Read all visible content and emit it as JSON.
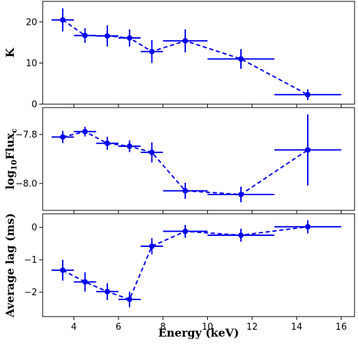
{
  "chart_data": [
    {
      "type": "line",
      "ylabel": "K",
      "ylim": [
        0,
        25
      ],
      "xlim": [
        2.6,
        16.6
      ],
      "yticks": [
        0,
        10,
        20
      ],
      "ytick_labels": [
        "0",
        "10",
        "20"
      ],
      "series": [
        {
          "color": "#0000ee",
          "points": [
            {
              "x": 3.5,
              "xerr": 0.5,
              "y": 20.5,
              "yerr": 2.8
            },
            {
              "x": 4.5,
              "xerr": 0.5,
              "y": 16.7,
              "yerr": 1.8
            },
            {
              "x": 5.5,
              "xerr": 0.5,
              "y": 16.6,
              "yerr": 2.6
            },
            {
              "x": 6.5,
              "xerr": 0.5,
              "y": 16.1,
              "yerr": 2.1
            },
            {
              "x": 7.5,
              "xerr": 0.5,
              "y": 12.8,
              "yerr": 2.8
            },
            {
              "x": 9.0,
              "xerr": 1.0,
              "y": 15.4,
              "yerr": 2.8
            },
            {
              "x": 11.5,
              "xerr": 1.5,
              "y": 11.0,
              "yerr": 2.4
            },
            {
              "x": 14.5,
              "xerr": 1.5,
              "y": 2.3,
              "yerr": 1.3
            }
          ]
        }
      ]
    },
    {
      "type": "line",
      "ylabel": "log₁₀Flux꜀",
      "ylabel_main": "log",
      "ylabel_sub1": "10",
      "ylabel_mid": "Flux",
      "ylabel_sub2": "c",
      "ylim": [
        -8.11,
        -7.69
      ],
      "xlim": [
        2.6,
        16.6
      ],
      "yticks": [
        -8.0,
        -7.8
      ],
      "ytick_labels": [
        "−8.0",
        "−7.8"
      ],
      "series": [
        {
          "color": "#0000ee",
          "points": [
            {
              "x": 3.5,
              "xerr": 0.5,
              "y": -7.81,
              "yerr": 0.025
            },
            {
              "x": 4.5,
              "xerr": 0.5,
              "y": -7.788,
              "yerr": 0.02
            },
            {
              "x": 5.5,
              "xerr": 0.5,
              "y": -7.836,
              "yerr": 0.027
            },
            {
              "x": 6.5,
              "xerr": 0.5,
              "y": -7.848,
              "yerr": 0.024
            },
            {
              "x": 7.5,
              "xerr": 0.5,
              "y": -7.873,
              "yerr": 0.041
            },
            {
              "x": 9.0,
              "xerr": 1.0,
              "y": -8.03,
              "yerr": 0.033
            },
            {
              "x": 11.5,
              "xerr": 1.5,
              "y": -8.045,
              "yerr": 0.032
            },
            {
              "x": 14.5,
              "xerr": 1.5,
              "y": -7.863,
              "yerr": 0.145
            }
          ]
        }
      ]
    },
    {
      "type": "line",
      "ylabel": "Average lag (ms)",
      "xlabel": "Energy (keV)",
      "ylim": [
        -2.75,
        0.42
      ],
      "xlim": [
        2.6,
        16.6
      ],
      "yticks": [
        -2,
        -1,
        0
      ],
      "ytick_labels": [
        "−2",
        "−1",
        "0"
      ],
      "xticks": [
        4,
        6,
        8,
        10,
        12,
        14,
        16
      ],
      "xtick_labels": [
        "4",
        "6",
        "8",
        "10",
        "12",
        "14",
        "16"
      ],
      "series": [
        {
          "color": "#0000ee",
          "points": [
            {
              "x": 3.5,
              "xerr": 0.5,
              "y": -1.32,
              "yerr": 0.32
            },
            {
              "x": 4.5,
              "xerr": 0.5,
              "y": -1.68,
              "yerr": 0.3
            },
            {
              "x": 5.5,
              "xerr": 0.5,
              "y": -1.98,
              "yerr": 0.26
            },
            {
              "x": 6.5,
              "xerr": 0.5,
              "y": -2.22,
              "yerr": 0.24
            },
            {
              "x": 7.5,
              "xerr": 0.5,
              "y": -0.58,
              "yerr": 0.25
            },
            {
              "x": 9.0,
              "xerr": 1.0,
              "y": -0.12,
              "yerr": 0.2
            },
            {
              "x": 11.5,
              "xerr": 1.5,
              "y": -0.24,
              "yerr": 0.2
            },
            {
              "x": 14.5,
              "xerr": 1.5,
              "y": 0.02,
              "yerr": 0.2
            }
          ]
        }
      ]
    }
  ]
}
